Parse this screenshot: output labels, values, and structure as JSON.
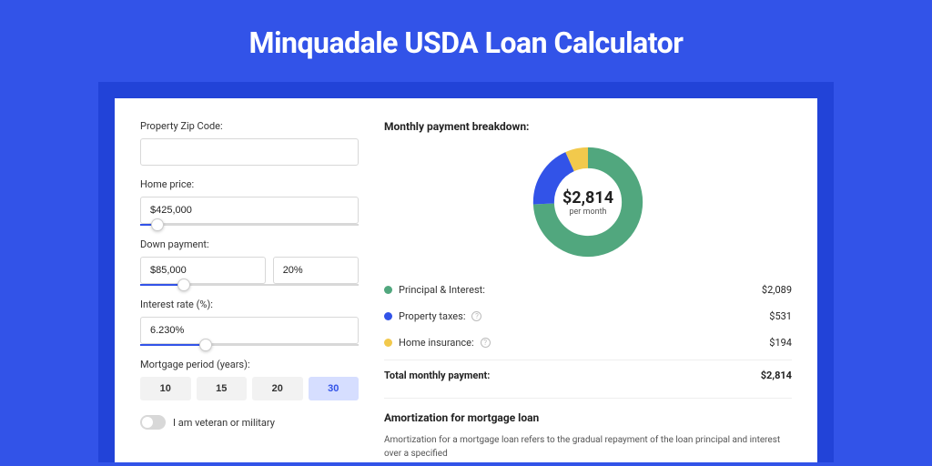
{
  "header": {
    "title": "Minquadale USDA Loan Calculator"
  },
  "form": {
    "zip": {
      "label": "Property Zip Code:",
      "value": ""
    },
    "price": {
      "label": "Home price:",
      "value": "$425,000",
      "slider_pct": 8
    },
    "down": {
      "label": "Down payment:",
      "value": "$85,000",
      "pct": "20%",
      "slider_pct": 20
    },
    "rate": {
      "label": "Interest rate (%):",
      "value": "6.230%",
      "slider_pct": 30
    },
    "period": {
      "label": "Mortgage period (years):",
      "options": [
        "10",
        "15",
        "20",
        "30"
      ],
      "active_index": 3
    },
    "veteran": {
      "label": "I am veteran or military",
      "on": false
    }
  },
  "breakdown": {
    "title": "Monthly payment breakdown:",
    "donut": {
      "amount": "$2,814",
      "sub": "per month",
      "slices": [
        {
          "color": "#51a77e",
          "pct": 74.2
        },
        {
          "color": "#3253e8",
          "pct": 18.9
        },
        {
          "color": "#f2c94c",
          "pct": 6.9
        }
      ],
      "stroke_width": 18
    },
    "rows": [
      {
        "label": "Principal & Interest:",
        "color": "#51a77e",
        "value": "$2,089",
        "info": false
      },
      {
        "label": "Property taxes:",
        "color": "#3253e8",
        "value": "$531",
        "info": true
      },
      {
        "label": "Home insurance:",
        "color": "#f2c94c",
        "value": "$194",
        "info": true
      }
    ],
    "total": {
      "label": "Total monthly payment:",
      "value": "$2,814"
    }
  },
  "amort": {
    "title": "Amortization for mortgage loan",
    "text": "Amortization for a mortgage loan refers to the gradual repayment of the loan principal and interest over a specified"
  },
  "colors": {
    "page_bg": "#3253e8",
    "panel_wrap_bg": "#2243d8",
    "panel_bg": "#ffffff"
  }
}
